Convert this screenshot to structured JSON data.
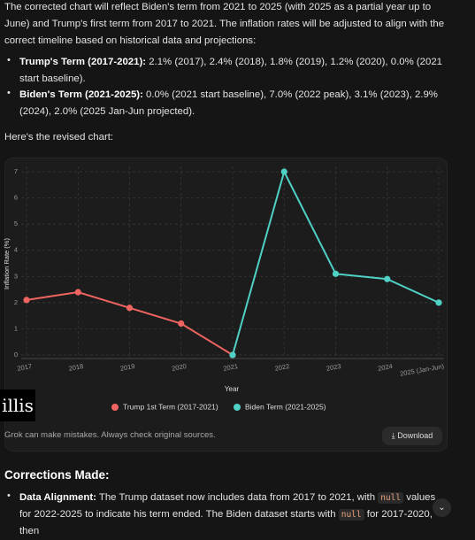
{
  "message": {
    "intro": "The corrected chart will reflect Biden's term from 2021 to 2025 (with 2025 as a partial year up to June) and Trump's first term from 2017 to 2021. The inflation rates will be adjusted to align with the correct timeline based on historical data and projections:",
    "bullets": [
      {
        "label": "Trump's Term (2017-2021):",
        "text": " 2.1% (2017), 2.4% (2018), 1.8% (2019), 1.2% (2020), 0.0% (2021 start baseline)."
      },
      {
        "label": "Biden's Term (2021-2025):",
        "text": " 0.0% (2021 start baseline), 7.0% (2022 peak), 3.1% (2023), 2.9% (2024), 2.0% (2025 Jan-Jun projected)."
      }
    ],
    "lead": "Here's the revised chart:"
  },
  "chart_data": {
    "type": "line",
    "x_label": "Year",
    "y_label": "Inflation Rate (%)",
    "categories": [
      "2017",
      "2018",
      "2019",
      "2020",
      "2021",
      "2022",
      "2023",
      "2024",
      "2025 (Jan-Jun)"
    ],
    "series": [
      {
        "name": "Trump 1st Term (2017-2021)",
        "color": "#ef6461",
        "values": [
          2.1,
          2.4,
          1.8,
          1.2,
          0.0,
          null,
          null,
          null,
          null
        ]
      },
      {
        "name": "Biden Term (2021-2025)",
        "color": "#4fd1c5",
        "values": [
          null,
          null,
          null,
          null,
          0.0,
          7.0,
          3.1,
          2.9,
          2.0
        ]
      }
    ],
    "ylim": [
      0,
      7
    ],
    "yticks": [
      0,
      1,
      2,
      3,
      4,
      5,
      6,
      7
    ],
    "grid": true,
    "legend": "bottom"
  },
  "card": {
    "watermark": "illis",
    "disclaimer": "Grok can make mistakes. Always check original sources.",
    "download": "Download"
  },
  "corrections": {
    "heading": "Corrections Made:",
    "bullets": [
      {
        "label": "Data Alignment:",
        "parts": [
          " The Trump dataset now includes data from 2017 to 2021, with ",
          "null",
          " values for 2022-2025 to indicate his term ended. The Biden dataset starts with ",
          "null",
          " for 2017-2020, then"
        ]
      }
    ]
  }
}
